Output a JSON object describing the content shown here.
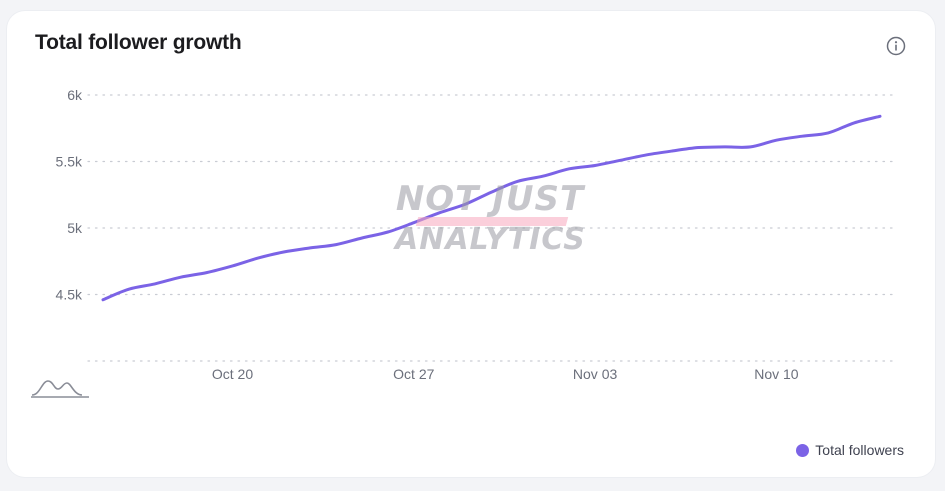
{
  "title": "Total follower growth",
  "icons": {
    "info": "info-icon",
    "zoom": "zoom-range-icon"
  },
  "watermark": {
    "line1": "NOT JUST",
    "line2": "ANALYTICS"
  },
  "colors": {
    "series": "#7b63e6",
    "grid": "#c9ccd3",
    "watermark_accent": "#f7a8be"
  },
  "legend": {
    "label": "Total followers"
  },
  "chart_data": {
    "type": "line",
    "title": "Total follower growth",
    "xlabel": "",
    "ylabel": "",
    "x_ticks": [
      "Oct 20",
      "Oct 27",
      "Nov 03",
      "Nov 10"
    ],
    "y_ticks": [
      {
        "value": 6000,
        "label": "6k"
      },
      {
        "value": 5500,
        "label": "5.5k"
      },
      {
        "value": 5000,
        "label": "5k"
      },
      {
        "value": 4500,
        "label": "4.5k"
      }
    ],
    "ylim": [
      4000,
      6000
    ],
    "grid": true,
    "legend_position": "bottom-right",
    "series": [
      {
        "name": "Total followers",
        "x": [
          "2024-10-15",
          "2024-10-16",
          "2024-10-17",
          "2024-10-18",
          "2024-10-19",
          "2024-10-20",
          "2024-10-21",
          "2024-10-22",
          "2024-10-23",
          "2024-10-24",
          "2024-10-25",
          "2024-10-26",
          "2024-10-27",
          "2024-10-28",
          "2024-10-29",
          "2024-10-30",
          "2024-10-31",
          "2024-11-01",
          "2024-11-02",
          "2024-11-03",
          "2024-11-04",
          "2024-11-05",
          "2024-11-06",
          "2024-11-07",
          "2024-11-08",
          "2024-11-09",
          "2024-11-10",
          "2024-11-11",
          "2024-11-12",
          "2024-11-13",
          "2024-11-14"
        ],
        "values": [
          4460,
          4540,
          4580,
          4630,
          4665,
          4715,
          4775,
          4820,
          4850,
          4875,
          4925,
          4970,
          5040,
          5115,
          5180,
          5270,
          5350,
          5390,
          5445,
          5470,
          5510,
          5550,
          5580,
          5605,
          5610,
          5610,
          5660,
          5690,
          5715,
          5790,
          5840
        ]
      }
    ]
  }
}
